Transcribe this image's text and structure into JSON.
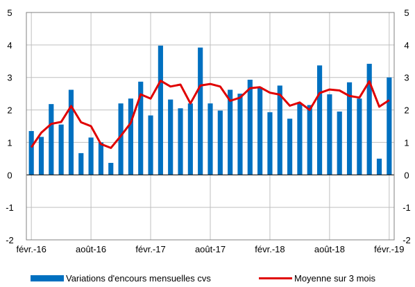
{
  "colors": {
    "bar": "#0070C0",
    "line": "#E00000",
    "grid": "#bfbfbf",
    "axis": "#808080"
  },
  "chart_data": {
    "type": "bar",
    "x": [
      "févr.-16",
      "mars-16",
      "avr.-16",
      "mai-16",
      "juin-16",
      "juil.-16",
      "août-16",
      "sept.-16",
      "oct.-16",
      "nov.-16",
      "déc.-16",
      "janv.-17",
      "févr.-17",
      "mars-17",
      "avr.-17",
      "mai-17",
      "juin-17",
      "juil.-17",
      "août-17",
      "sept.-17",
      "oct.-17",
      "nov.-17",
      "déc.-17",
      "janv.-18",
      "févr.-18",
      "mars-18",
      "avr.-18",
      "mai-18",
      "juin-18",
      "juil.-18",
      "août-18",
      "sept.-18",
      "oct.-18",
      "nov.-18",
      "déc.-18",
      "janv.-19",
      "févr.-19"
    ],
    "x_tick_labels": [
      "févr.-16",
      "août-16",
      "févr.-17",
      "août-17",
      "févr.-18",
      "août-18",
      "févr.-19"
    ],
    "x_tick_positions": [
      0,
      6,
      12,
      18,
      24,
      30,
      36
    ],
    "y_ticks": [
      "-2",
      "-1",
      "0",
      "1",
      "2",
      "3",
      "4",
      "5"
    ],
    "ylim": [
      -2,
      5
    ],
    "grid": true,
    "legend_position": "bottom",
    "series": [
      {
        "name": "Variations d'encours mensuelles cvs",
        "type": "bar",
        "values": [
          1.35,
          1.17,
          2.18,
          1.55,
          2.62,
          0.67,
          1.15,
          1.0,
          0.37,
          2.2,
          2.35,
          2.87,
          1.83,
          3.98,
          2.32,
          2.05,
          2.2,
          3.92,
          2.2,
          1.98,
          2.62,
          2.5,
          2.93,
          2.7,
          1.93,
          2.75,
          1.73,
          2.2,
          2.15,
          3.37,
          2.48,
          1.95,
          2.85,
          2.35,
          3.42,
          0.5,
          3.0
        ]
      },
      {
        "name": "Moyenne sur 3 mois",
        "type": "line",
        "values": [
          0.85,
          1.3,
          1.57,
          1.63,
          2.12,
          1.62,
          1.5,
          0.95,
          0.83,
          1.2,
          1.6,
          2.48,
          2.35,
          2.9,
          2.72,
          2.78,
          2.2,
          2.75,
          2.8,
          2.72,
          2.28,
          2.38,
          2.67,
          2.7,
          2.53,
          2.47,
          2.13,
          2.23,
          2.0,
          2.52,
          2.63,
          2.6,
          2.43,
          2.38,
          2.88,
          2.1,
          2.3
        ]
      }
    ]
  }
}
